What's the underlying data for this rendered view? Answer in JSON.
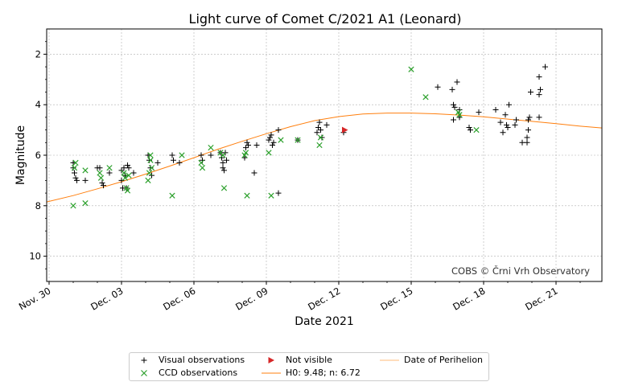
{
  "chart_data": {
    "type": "scatter",
    "title": "Light curve of Comet C/2021 A1 (Leonard)",
    "xlabel": "Date 2021",
    "ylabel": "Magnitude",
    "xlim": [
      -0.1,
      22.9
    ],
    "ylim": [
      11,
      1
    ],
    "y_inverted": true,
    "grid": true,
    "x_ticks": [
      {
        "value": 0,
        "label": "Nov. 30"
      },
      {
        "value": 3,
        "label": "Dec. 03"
      },
      {
        "value": 6,
        "label": "Dec. 06"
      },
      {
        "value": 9,
        "label": "Dec. 09"
      },
      {
        "value": 12,
        "label": "Dec. 12"
      },
      {
        "value": 15,
        "label": "Dec. 15"
      },
      {
        "value": 18,
        "label": "Dec. 18"
      },
      {
        "value": 21,
        "label": "Dec. 21"
      }
    ],
    "y_ticks": [
      2,
      4,
      6,
      8,
      10
    ],
    "annotation": "COBS © Črni Vrh Observatory",
    "legend_position": "bottom-center",
    "series": [
      {
        "name": "Visual observations",
        "marker": "plus",
        "color": "#000000",
        "points": [
          [
            1.0,
            6.3
          ],
          [
            1.0,
            6.5
          ],
          [
            1.05,
            6.7
          ],
          [
            1.1,
            6.9
          ],
          [
            1.15,
            7.0
          ],
          [
            1.5,
            7.0
          ],
          [
            2.0,
            6.5
          ],
          [
            2.1,
            6.5
          ],
          [
            2.2,
            7.1
          ],
          [
            2.25,
            7.2
          ],
          [
            2.5,
            6.7
          ],
          [
            3.0,
            6.6
          ],
          [
            3.0,
            7.0
          ],
          [
            3.05,
            7.3
          ],
          [
            3.1,
            6.5
          ],
          [
            3.15,
            6.8
          ],
          [
            3.2,
            7.3
          ],
          [
            3.25,
            6.4
          ],
          [
            3.3,
            6.5
          ],
          [
            3.5,
            6.7
          ],
          [
            4.1,
            6.0
          ],
          [
            4.15,
            6.2
          ],
          [
            4.2,
            6.5
          ],
          [
            4.25,
            6.8
          ],
          [
            4.5,
            6.3
          ],
          [
            5.1,
            6.0
          ],
          [
            5.15,
            6.2
          ],
          [
            5.4,
            6.3
          ],
          [
            6.3,
            6.0
          ],
          [
            6.35,
            6.2
          ],
          [
            6.7,
            6.0
          ],
          [
            7.1,
            5.9
          ],
          [
            7.15,
            6.1
          ],
          [
            7.2,
            6.3
          ],
          [
            7.2,
            6.5
          ],
          [
            7.25,
            6.6
          ],
          [
            7.3,
            5.9
          ],
          [
            7.35,
            6.2
          ],
          [
            8.1,
            6.1
          ],
          [
            8.15,
            5.7
          ],
          [
            8.2,
            5.5
          ],
          [
            8.25,
            5.6
          ],
          [
            8.5,
            6.7
          ],
          [
            8.6,
            5.6
          ],
          [
            9.1,
            5.4
          ],
          [
            9.15,
            5.3
          ],
          [
            9.2,
            5.2
          ],
          [
            9.25,
            5.6
          ],
          [
            9.3,
            5.5
          ],
          [
            9.5,
            5.0
          ],
          [
            9.5,
            7.5
          ],
          [
            10.3,
            5.4
          ],
          [
            11.1,
            5.1
          ],
          [
            11.15,
            4.9
          ],
          [
            11.2,
            4.7
          ],
          [
            11.25,
            5.0
          ],
          [
            11.3,
            5.3
          ],
          [
            11.5,
            4.8
          ],
          [
            12.2,
            5.1
          ],
          [
            16.1,
            3.3
          ],
          [
            16.7,
            3.4
          ],
          [
            16.75,
            4.0
          ],
          [
            16.8,
            4.1
          ],
          [
            16.75,
            4.6
          ],
          [
            16.9,
            3.1
          ],
          [
            17.0,
            4.2
          ],
          [
            17.0,
            4.5
          ],
          [
            17.4,
            4.9
          ],
          [
            17.45,
            5.0
          ],
          [
            17.8,
            4.3
          ],
          [
            18.5,
            4.2
          ],
          [
            18.7,
            4.7
          ],
          [
            18.8,
            5.1
          ],
          [
            18.9,
            4.4
          ],
          [
            18.95,
            4.8
          ],
          [
            19.0,
            4.9
          ],
          [
            19.05,
            4.0
          ],
          [
            19.3,
            4.8
          ],
          [
            19.35,
            4.6
          ],
          [
            19.6,
            5.5
          ],
          [
            19.8,
            5.5
          ],
          [
            19.8,
            5.3
          ],
          [
            19.85,
            5.0
          ],
          [
            19.85,
            4.6
          ],
          [
            19.9,
            4.5
          ],
          [
            19.95,
            3.5
          ],
          [
            20.3,
            2.9
          ],
          [
            20.35,
            3.4
          ],
          [
            20.3,
            3.6
          ],
          [
            20.3,
            4.5
          ],
          [
            20.55,
            2.5
          ]
        ]
      },
      {
        "name": "CCD observations",
        "marker": "x",
        "color": "#2ca02c",
        "points": [
          [
            1.0,
            8.0
          ],
          [
            1.05,
            6.5
          ],
          [
            1.1,
            6.3
          ],
          [
            1.5,
            7.9
          ],
          [
            1.5,
            6.6
          ],
          [
            2.1,
            6.7
          ],
          [
            2.15,
            6.9
          ],
          [
            2.5,
            6.5
          ],
          [
            3.1,
            6.7
          ],
          [
            3.15,
            6.9
          ],
          [
            3.2,
            7.3
          ],
          [
            3.25,
            7.4
          ],
          [
            3.3,
            6.8
          ],
          [
            4.1,
            7.0
          ],
          [
            4.15,
            6.7
          ],
          [
            4.2,
            6.2
          ],
          [
            4.2,
            6.0
          ],
          [
            4.25,
            6.5
          ],
          [
            5.1,
            7.6
          ],
          [
            5.5,
            6.0
          ],
          [
            6.3,
            6.3
          ],
          [
            6.35,
            6.5
          ],
          [
            6.7,
            5.7
          ],
          [
            7.1,
            5.9
          ],
          [
            7.2,
            6.0
          ],
          [
            7.25,
            7.3
          ],
          [
            8.1,
            6.0
          ],
          [
            8.15,
            5.9
          ],
          [
            8.2,
            7.6
          ],
          [
            9.1,
            5.9
          ],
          [
            9.2,
            7.6
          ],
          [
            9.6,
            5.4
          ],
          [
            10.3,
            5.4
          ],
          [
            11.2,
            5.6
          ],
          [
            11.25,
            5.3
          ],
          [
            15.0,
            2.6
          ],
          [
            15.6,
            3.7
          ],
          [
            16.95,
            4.3
          ],
          [
            17.0,
            4.4
          ],
          [
            17.7,
            5.0
          ]
        ]
      },
      {
        "name": "Not visible",
        "marker": "triangle-right",
        "color": "#d62728",
        "points": [
          [
            12.25,
            5.0
          ]
        ]
      },
      {
        "name": "H0: 9.48; n: 6.72",
        "marker": "line",
        "color": "#ff7f0e",
        "points": [
          [
            -0.1,
            7.85
          ],
          [
            1,
            7.6
          ],
          [
            2,
            7.33
          ],
          [
            3,
            7.05
          ],
          [
            4,
            6.75
          ],
          [
            5,
            6.43
          ],
          [
            6,
            6.1
          ],
          [
            7,
            5.76
          ],
          [
            8,
            5.45
          ],
          [
            9,
            5.15
          ],
          [
            10,
            4.87
          ],
          [
            11,
            4.63
          ],
          [
            12,
            4.47
          ],
          [
            13,
            4.37
          ],
          [
            14,
            4.33
          ],
          [
            15,
            4.33
          ],
          [
            16,
            4.36
          ],
          [
            17,
            4.41
          ],
          [
            18,
            4.48
          ],
          [
            19,
            4.57
          ],
          [
            20,
            4.66
          ],
          [
            21,
            4.75
          ],
          [
            22,
            4.85
          ],
          [
            22.9,
            4.92
          ]
        ]
      },
      {
        "name": "Date of Perihelion",
        "marker": "line",
        "color": "#ff7f0e",
        "points": []
      }
    ]
  }
}
